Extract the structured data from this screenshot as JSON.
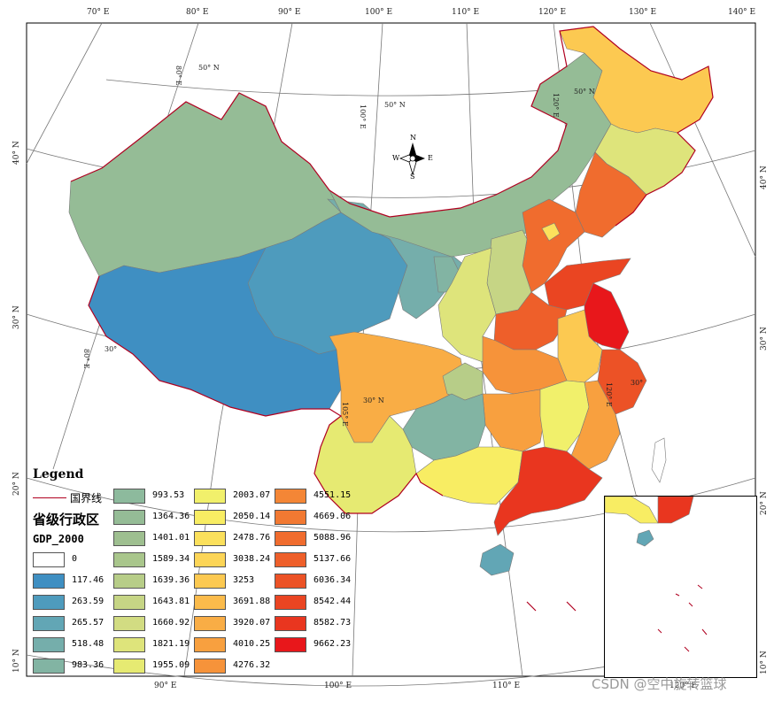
{
  "top_ticks": [
    "70° E",
    "80° E",
    "90° E",
    "100° E",
    "110° E",
    "120° E",
    "130° E",
    "140° E"
  ],
  "bottom_ticks": [
    "90° E",
    "100° E",
    "110° E",
    "120° E"
  ],
  "left_ticks": [
    "40° N",
    "30° N",
    "20° N",
    "10° N"
  ],
  "right_ticks": [
    "40° N",
    "30° N",
    "20° N",
    "10° N"
  ],
  "grid_labels": {
    "lat50a": "50° N",
    "lat50b": "50° N",
    "lat50c": "50° N",
    "lon100": "100° E",
    "lon80a": "80° E",
    "lon80b": "80° E",
    "lon120": "120° E",
    "lat30a": "30°",
    "lat30b": "30° N",
    "lon105": "105° E",
    "lon120b": "120° E",
    "lat30c": "30°"
  },
  "north_arrow": {
    "n": "N",
    "s": "S",
    "e": "E",
    "w": "W"
  },
  "legend": {
    "title": "Legend",
    "border_label": "国界线",
    "border_color": "#b00020",
    "layer_title": "省级行政区",
    "field_title": "GDP_2000",
    "classes": [
      {
        "label": "0",
        "color": "#ffffff"
      },
      {
        "label": "117.46",
        "color": "#3f8fc2"
      },
      {
        "label": "263.59",
        "color": "#4e9bbd"
      },
      {
        "label": "265.57",
        "color": "#62a6b5"
      },
      {
        "label": "518.48",
        "color": "#75aeab"
      },
      {
        "label": "983.36",
        "color": "#82b4a3"
      },
      {
        "label": "993.53",
        "color": "#8dba9d"
      },
      {
        "label": "1364.36",
        "color": "#95bc96"
      },
      {
        "label": "1401.01",
        "color": "#9ebf90"
      },
      {
        "label": "1589.34",
        "color": "#a9c68c"
      },
      {
        "label": "1639.36",
        "color": "#b7cd88"
      },
      {
        "label": "1643.81",
        "color": "#c6d585"
      },
      {
        "label": "1660.92",
        "color": "#d2dc82"
      },
      {
        "label": "1821.19",
        "color": "#dee47b"
      },
      {
        "label": "1955.09",
        "color": "#e6ea72"
      },
      {
        "label": "2003.07",
        "color": "#f1f06b"
      },
      {
        "label": "2050.14",
        "color": "#f8ed63"
      },
      {
        "label": "2478.76",
        "color": "#fbe05c"
      },
      {
        "label": "3038.24",
        "color": "#fcd557"
      },
      {
        "label": "3253",
        "color": "#fcc951"
      },
      {
        "label": "3691.88",
        "color": "#fbbb4b"
      },
      {
        "label": "3920.07",
        "color": "#f9ad45"
      },
      {
        "label": "4010.25",
        "color": "#f8a03f"
      },
      {
        "label": "4276.32",
        "color": "#f6933a"
      },
      {
        "label": "4551.15",
        "color": "#f48636"
      },
      {
        "label": "4669.06",
        "color": "#f27932"
      },
      {
        "label": "5088.96",
        "color": "#f06c2e"
      },
      {
        "label": "5137.66",
        "color": "#ee5f2a"
      },
      {
        "label": "6036.34",
        "color": "#ec5226"
      },
      {
        "label": "8542.44",
        "color": "#ea4522"
      },
      {
        "label": "8582.73",
        "color": "#e9361f"
      },
      {
        "label": "9662.23",
        "color": "#e8171b"
      }
    ]
  },
  "watermark": "CSDN @空中旋转篮球"
}
